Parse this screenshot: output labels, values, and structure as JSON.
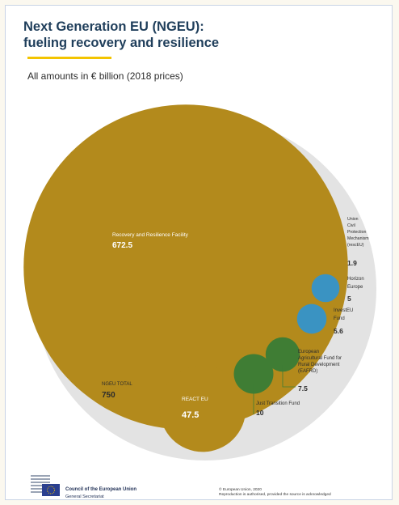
{
  "header": {
    "title_line1": "Next Generation EU (NGEU):",
    "title_line2": "fueling recovery and resilience",
    "subtitle": "All amounts in € billion (2018 prices)"
  },
  "chart_data": {
    "type": "bubble",
    "total": {
      "label": "NGEU TOTAL",
      "value": 750,
      "value_text": "750"
    },
    "items": [
      {
        "label_lines": [
          "Recovery and Resilience Facility"
        ],
        "value": 672.5,
        "value_text": "672.5",
        "color": "#b38a1c"
      },
      {
        "label_lines": [
          "REACT EU"
        ],
        "value": 47.5,
        "value_text": "47.5",
        "color": "#b38a1c"
      },
      {
        "label_lines": [
          "Just Transition Fund"
        ],
        "value": 10,
        "value_text": "10",
        "color": "#3f7d34"
      },
      {
        "label_lines": [
          "European",
          "Agricultural Fund for",
          "Rural Development",
          "(EAFRD)"
        ],
        "value": 7.5,
        "value_text": "7.5",
        "color": "#3f7d34"
      },
      {
        "label_lines": [
          "InvestEU",
          "Fund"
        ],
        "value": 5.6,
        "value_text": "5.6",
        "color": "#3a93c2"
      },
      {
        "label_lines": [
          "Horizon",
          "Europe"
        ],
        "value": 5,
        "value_text": "5",
        "color": "#3a93c2"
      },
      {
        "label_lines": [
          "Union",
          "Civil",
          "Protection",
          "Mechanism",
          "(rescEU)"
        ],
        "value": 1.9,
        "value_text": "1.9",
        "color": "#b38a1c"
      }
    ],
    "colors": {
      "outer": "#e3e3e3",
      "gold": "#b38a1c",
      "green": "#3f7d34",
      "blue": "#3a93c2"
    }
  },
  "footer": {
    "org_name": "Council of the European Union",
    "org_sub": "General Secretariat",
    "copyright_line1": "© European Union, 2020",
    "copyright_line2": "Reproduction is authorised, provided the source is acknowledged"
  }
}
